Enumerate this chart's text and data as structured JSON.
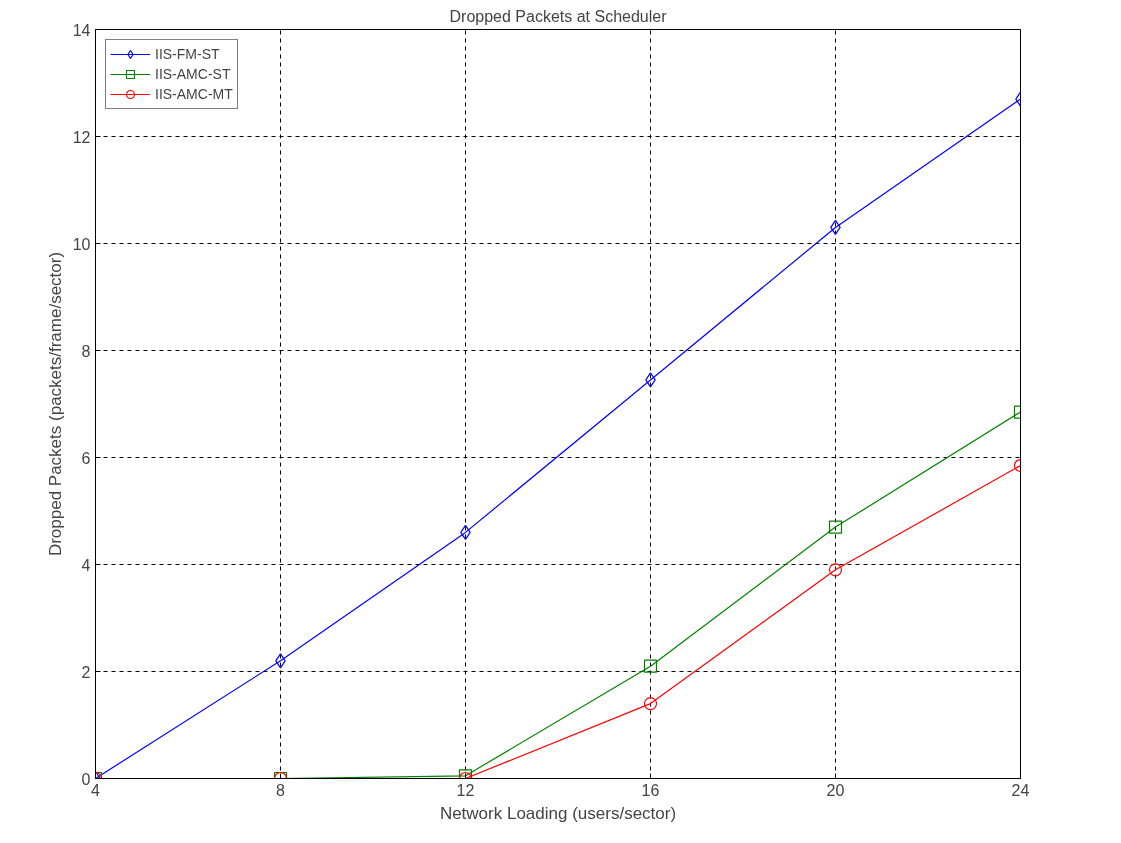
{
  "chart_data": {
    "type": "line",
    "title": "Dropped Packets at Scheduler",
    "xlabel": "Network Loading (users/sector)",
    "ylabel": "Dropped Packets (packets/frame/sector)",
    "x": [
      4,
      8,
      12,
      16,
      20,
      24
    ],
    "series": [
      {
        "name": "IIS-FM-ST",
        "color": "#0000ff",
        "marker": "diamond",
        "values": [
          0,
          2.2,
          4.6,
          7.45,
          10.3,
          12.7
        ]
      },
      {
        "name": "IIS-AMC-ST",
        "color": "#008000",
        "marker": "square",
        "values": [
          0,
          0,
          0.05,
          2.1,
          4.7,
          6.85
        ]
      },
      {
        "name": "IIS-AMC-MT",
        "color": "#ff0000",
        "marker": "circle",
        "values": [
          0,
          0,
          0,
          1.4,
          3.9,
          5.85
        ]
      }
    ],
    "xlim": [
      4,
      24
    ],
    "ylim": [
      0,
      14
    ],
    "xticks": [
      4,
      8,
      12,
      16,
      20,
      24
    ],
    "yticks": [
      0,
      2,
      4,
      6,
      8,
      10,
      12,
      14
    ],
    "grid": true,
    "legend": "top left",
    "line_style": "solid"
  }
}
